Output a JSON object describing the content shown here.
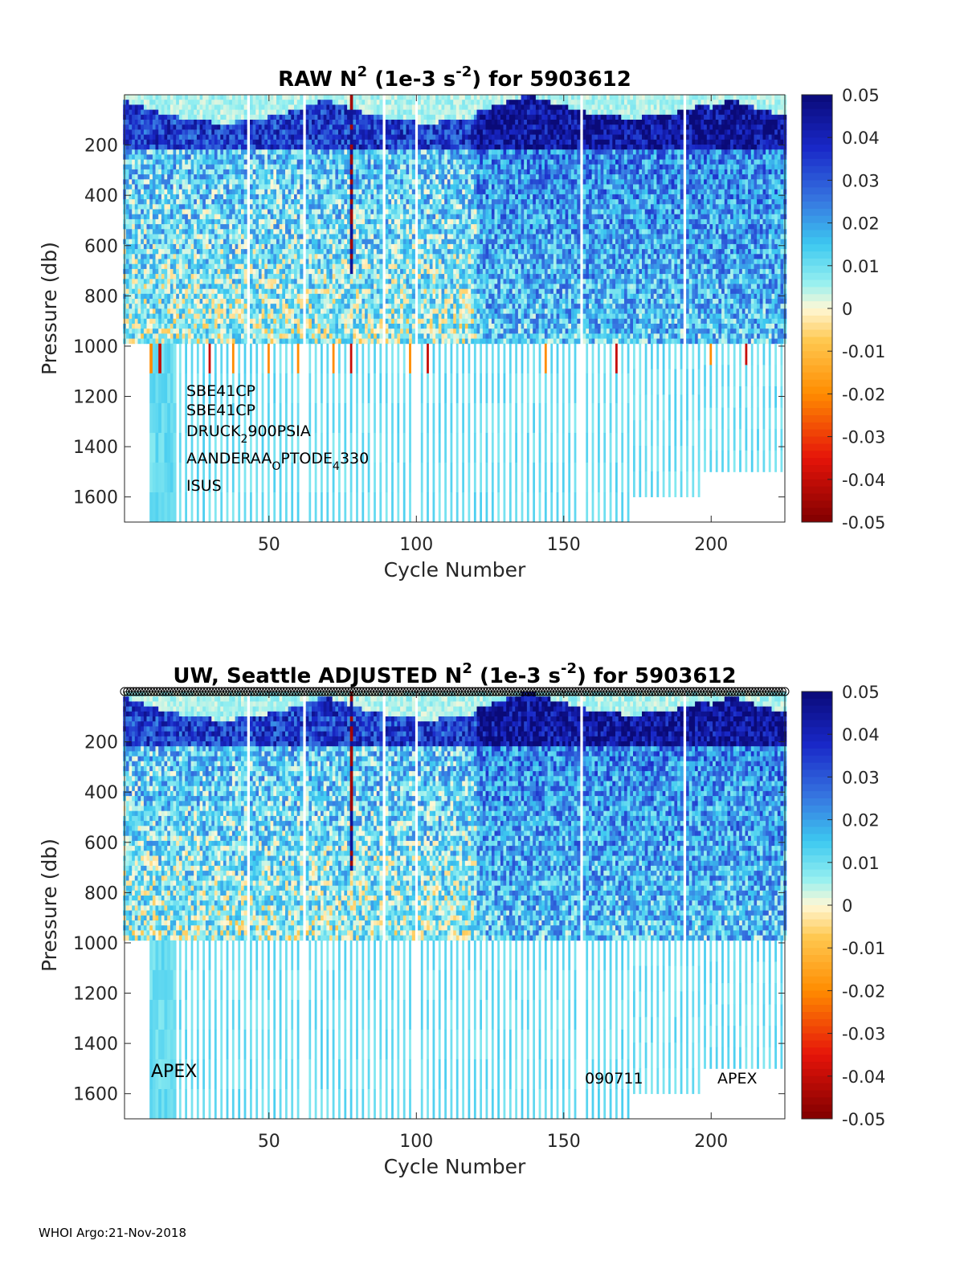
{
  "footer": "WHOI Argo:21-Nov-2018",
  "chart_data": [
    {
      "type": "heatmap",
      "title_parts": [
        "RAW N",
        "2",
        " (1e-3 s",
        "-2",
        ") for 5903612"
      ],
      "xlabel": "Cycle Number",
      "ylabel": "Pressure (db)",
      "xlim": [
        1,
        225
      ],
      "ylim": [
        1700,
        0
      ],
      "xticks": [
        50,
        100,
        150,
        200
      ],
      "yticks": [
        200,
        400,
        600,
        800,
        1000,
        1200,
        1400,
        1600
      ],
      "colorbar": {
        "clim": [
          -0.05,
          0.05
        ],
        "ticks": [
          "0.05",
          "0.04",
          "0.03",
          "0.02",
          "0.01",
          "0",
          "-0.01",
          "-0.02",
          "-0.03",
          "-0.04",
          "-0.05"
        ],
        "colormap": "jet-diverging"
      },
      "annotations": [
        {
          "text": "SBE41CP"
        },
        {
          "text": "SBE41CP"
        },
        {
          "parts": [
            "DRUCK",
            "2",
            "900PSIA"
          ]
        },
        {
          "parts": [
            "AANDERAA",
            "O",
            "PTODE",
            "4",
            "330"
          ]
        },
        {
          "text": "ISUS"
        }
      ],
      "gap_cycles": [
        43,
        62,
        89,
        100,
        156,
        191
      ],
      "profile_max_depth_segments": [
        {
          "cycle_range": [
            10,
            18
          ],
          "max_depth_db": 1700
        },
        {
          "cycle_range": [
            19,
            172
          ],
          "max_depth_db": 1700
        },
        {
          "cycle_range": [
            173,
            196
          ],
          "max_depth_db": 1600
        },
        {
          "cycle_range": [
            197,
            225
          ],
          "max_depth_db": 1500
        }
      ]
    },
    {
      "type": "heatmap",
      "title_parts": [
        "UW, Seattle  ADJUSTED N",
        "2",
        " (1e-3 s",
        "-2",
        ") for 5903612"
      ],
      "xlabel": "Cycle Number",
      "ylabel": "Pressure (db)",
      "xlim": [
        1,
        225
      ],
      "ylim": [
        1700,
        0
      ],
      "xticks": [
        50,
        100,
        150,
        200
      ],
      "yticks": [
        200,
        400,
        600,
        800,
        1000,
        1200,
        1400,
        1600
      ],
      "colorbar": {
        "clim": [
          -0.05,
          0.05
        ],
        "ticks": [
          "0.05",
          "0.04",
          "0.03",
          "0.02",
          "0.01",
          "0",
          "-0.01",
          "-0.02",
          "-0.03",
          "-0.04",
          "-0.05"
        ],
        "colormap": "jet-diverging"
      },
      "annotations": [
        {
          "text": "APEX",
          "size": "large"
        },
        {
          "text": "090711"
        },
        {
          "text": "APEX"
        }
      ],
      "top_markers": "open circles at each cycle along the top edge",
      "gap_cycles": [
        43,
        62,
        89,
        100,
        156,
        191
      ],
      "profile_max_depth_segments": [
        {
          "cycle_range": [
            10,
            18
          ],
          "max_depth_db": 1700
        },
        {
          "cycle_range": [
            19,
            172
          ],
          "max_depth_db": 1700
        },
        {
          "cycle_range": [
            173,
            196
          ],
          "max_depth_db": 1600
        },
        {
          "cycle_range": [
            197,
            225
          ],
          "max_depth_db": 1500
        }
      ]
    }
  ]
}
